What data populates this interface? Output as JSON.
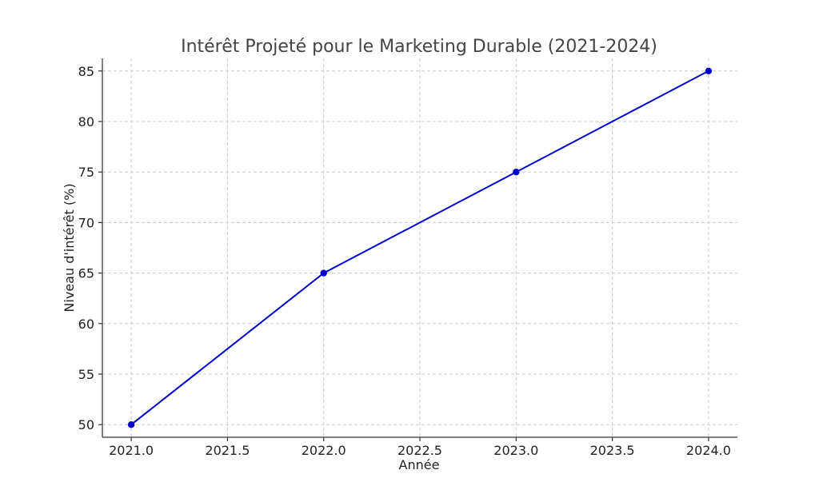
{
  "chart_data": {
    "type": "line",
    "title": "Intérêt Projeté pour le Marketing Durable (2021-2024)",
    "xlabel": "Année",
    "ylabel": "Niveau d'intérêt (%)",
    "x": [
      2021,
      2022,
      2023,
      2024
    ],
    "series": [
      {
        "values": [
          50,
          65,
          75,
          85
        ],
        "color": "#0000cc"
      }
    ],
    "xlim": [
      2020.85,
      2024.15
    ],
    "ylim": [
      48.75,
      86.25
    ],
    "xticks": [
      "2021.0",
      "2021.5",
      "2022.0",
      "2022.5",
      "2023.0",
      "2023.5",
      "2024.0"
    ],
    "xtick_values": [
      2021.0,
      2021.5,
      2022.0,
      2022.5,
      2023.0,
      2023.5,
      2024.0
    ],
    "yticks": [
      "50",
      "55",
      "60",
      "65",
      "70",
      "75",
      "80",
      "85"
    ],
    "ytick_values": [
      50,
      55,
      60,
      65,
      70,
      75,
      80,
      85
    ],
    "grid": true,
    "marker": "circle"
  }
}
